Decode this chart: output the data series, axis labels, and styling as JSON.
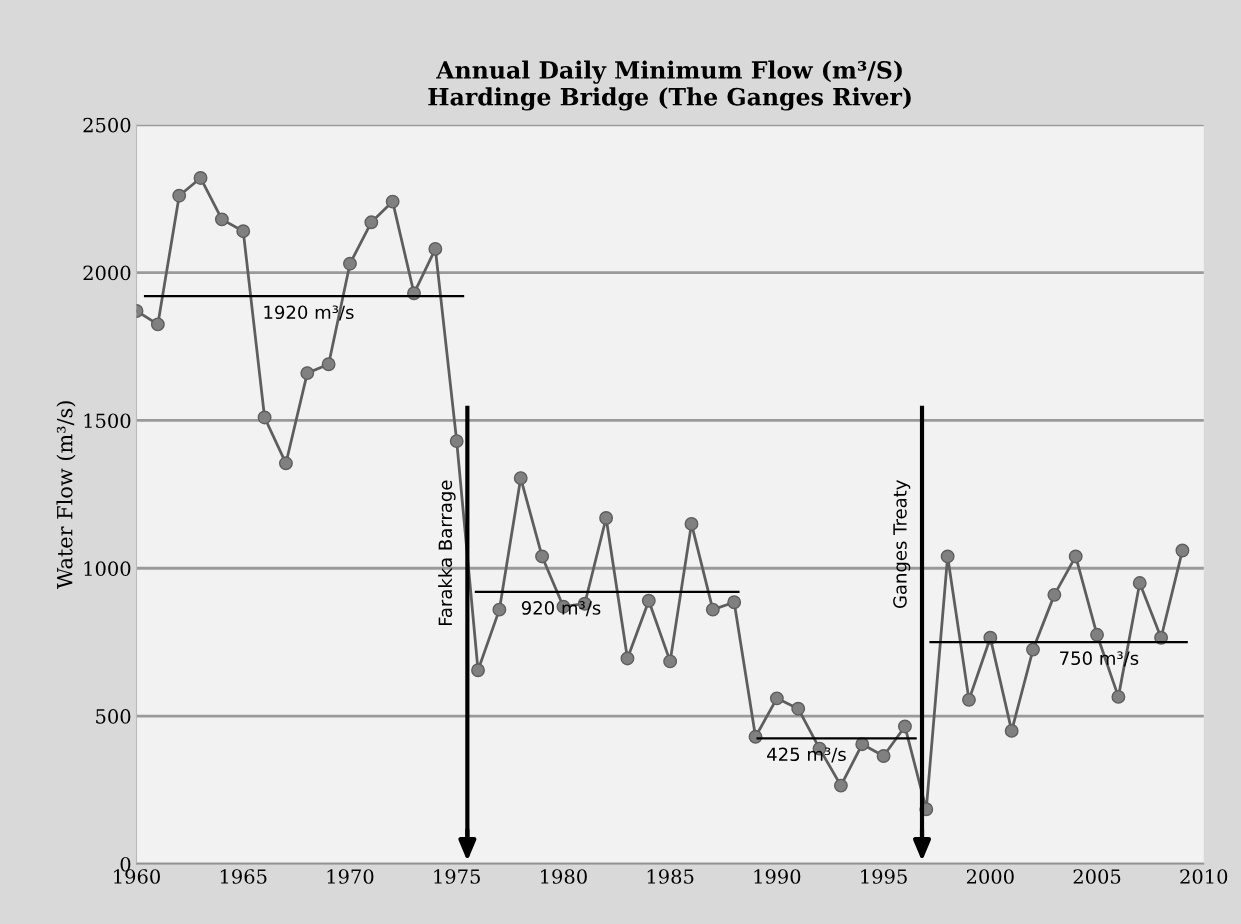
{
  "chart_data": {
    "type": "line",
    "title": "Annual Daily Minimum Flow (m³/S)\nHardinge Bridge (The Ganges River)",
    "ylabel": "Water Flow (m³/s)",
    "xlim": [
      1960,
      2010
    ],
    "xticks": [
      1960,
      1965,
      1970,
      1975,
      1980,
      1985,
      1990,
      1995,
      2000,
      2005,
      2010
    ],
    "ylim": [
      0,
      2500
    ],
    "yticks": [
      0,
      500,
      1000,
      1500,
      2000,
      2500
    ],
    "grid": "y",
    "marker": "circle",
    "line_style": "solid",
    "series": [
      {
        "color": "#5e5e5e",
        "x": [
          1960,
          1961,
          1962,
          1963,
          1964,
          1965,
          1966,
          1967,
          1968,
          1969,
          1970,
          1971,
          1972,
          1973,
          1974,
          1975,
          1976,
          1977,
          1978,
          1979,
          1980,
          1981,
          1982,
          1983,
          1984,
          1985,
          1986,
          1987,
          1988,
          1989,
          1990,
          1991,
          1992,
          1993,
          1994,
          1995,
          1996,
          1997,
          1998,
          1999,
          2000,
          2001,
          2002,
          2003,
          2004,
          2005,
          2006,
          2007,
          2008,
          2009
        ],
        "values": [
          1870,
          1825,
          2260,
          2320,
          2180,
          2140,
          1510,
          1355,
          1660,
          1690,
          2030,
          2170,
          2240,
          1930,
          2080,
          1430,
          655,
          860,
          1305,
          1040,
          870,
          880,
          1170,
          695,
          890,
          685,
          1150,
          860,
          885,
          430,
          560,
          525,
          390,
          265,
          405,
          365,
          465,
          185,
          1040,
          555,
          765,
          450,
          725,
          910,
          1040,
          775,
          565,
          950,
          765,
          1060
        ]
      },
      {
        "color": "#000000",
        "marker": "none",
        "x": [
          1960.4,
          1975.3
        ],
        "values": [
          1920,
          1920
        ]
      },
      {
        "color": "#000000",
        "marker": "none",
        "x": [
          1975.9,
          1988.2
        ],
        "values": [
          920,
          920
        ]
      },
      {
        "color": "#000000",
        "marker": "none",
        "x": [
          1989.1,
          1996.5
        ],
        "values": [
          425,
          425
        ]
      },
      {
        "color": "#000000",
        "marker": "none",
        "x": [
          1997.2,
          2009.2
        ],
        "values": [
          750,
          750
        ]
      }
    ],
    "annotations": [
      {
        "text": "1920 m³/s",
        "x": 1965.9,
        "y": 1920
      },
      {
        "text": "920 m³/s",
        "x": 1978,
        "y": 920
      },
      {
        "text": "425 m³/s",
        "x": 1989.5,
        "y": 425
      },
      {
        "text": "750 m³/s",
        "x": 2003.2,
        "y": 750
      }
    ],
    "ref_lines": [
      {
        "axis": "x",
        "value": 1975.5,
        "label": "Farakka Barrage",
        "color": "#000000"
      },
      {
        "axis": "x",
        "value": 1996.8,
        "label": "Ganges Treaty",
        "color": "#000000"
      }
    ]
  }
}
